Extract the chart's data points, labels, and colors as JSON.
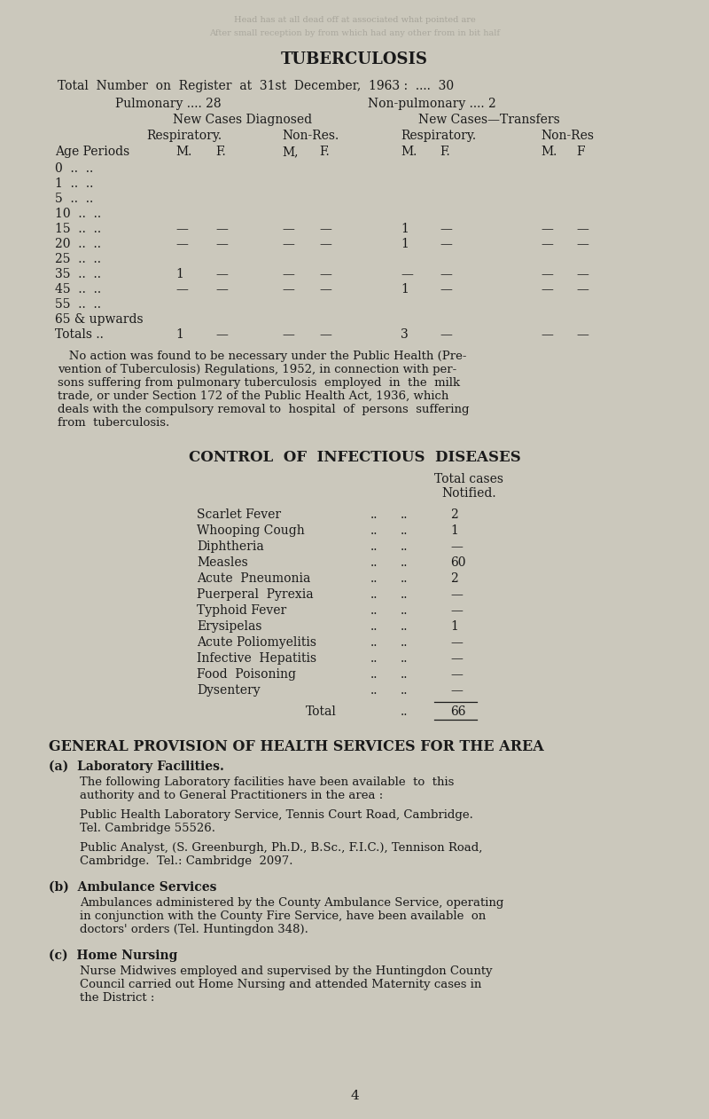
{
  "bg_color": "#cbc8bc",
  "text_color": "#1a1a1a",
  "title": "TUBERCULOSIS",
  "age_rows": [
    {
      "age": "0  ..  ..",
      "c1": "",
      "c2": "",
      "c3": "",
      "c4": "",
      "c5": "",
      "c6": "",
      "c7": "",
      "c8": ""
    },
    {
      "age": "1  ..  ..",
      "c1": "",
      "c2": "",
      "c3": "",
      "c4": "",
      "c5": "",
      "c6": "",
      "c7": "",
      "c8": ""
    },
    {
      "age": "5  ..  ..",
      "c1": "",
      "c2": "",
      "c3": "",
      "c4": "",
      "c5": "",
      "c6": "",
      "c7": "",
      "c8": ""
    },
    {
      "age": "10  ..  ..",
      "c1": "",
      "c2": "",
      "c3": "",
      "c4": "",
      "c5": "",
      "c6": "",
      "c7": "",
      "c8": ""
    },
    {
      "age": "15  ..  ..",
      "c1": "—",
      "c2": "—",
      "c3": "—",
      "c4": "—",
      "c5": "1",
      "c6": "—",
      "c7": "—",
      "c8": "—"
    },
    {
      "age": "20  ..  ..",
      "c1": "—",
      "c2": "—",
      "c3": "—",
      "c4": "—",
      "c5": "1",
      "c6": "—",
      "c7": "—",
      "c8": "—"
    },
    {
      "age": "25  ..  ..",
      "c1": "",
      "c2": "",
      "c3": "",
      "c4": "",
      "c5": "",
      "c6": "",
      "c7": "",
      "c8": ""
    },
    {
      "age": "35  ..  ..",
      "c1": "1",
      "c2": "—",
      "c3": "—",
      "c4": "—",
      "c5": "—",
      "c6": "—",
      "c7": "—",
      "c8": "—"
    },
    {
      "age": "45  ..  ..",
      "c1": "—",
      "c2": "—",
      "c3": "—",
      "c4": "—",
      "c5": "1",
      "c6": "—",
      "c7": "—",
      "c8": "—"
    },
    {
      "age": "55  ..  ..",
      "c1": "",
      "c2": "",
      "c3": "",
      "c4": "",
      "c5": "",
      "c6": "",
      "c7": "",
      "c8": ""
    },
    {
      "age": "65 & upwards",
      "c1": "",
      "c2": "",
      "c3": "",
      "c4": "",
      "c5": "",
      "c6": "",
      "c7": "",
      "c8": ""
    },
    {
      "age": "Totals ..",
      "c1": "1",
      "c2": "—",
      "c3": "—",
      "c4": "—",
      "c5": "3",
      "c6": "—",
      "c7": "—",
      "c8": "—"
    }
  ],
  "diseases": [
    {
      "name": "Scarlet Fever",
      "value": "2"
    },
    {
      "name": "Whooping Cough",
      "value": "1"
    },
    {
      "name": "Diphtheria",
      "value": "—"
    },
    {
      "name": "Measles",
      "value": "60"
    },
    {
      "name": "Acute  Pneumonia",
      "value": "2"
    },
    {
      "name": "Puerperal  Pyrexia",
      "value": "—"
    },
    {
      "name": "Typhoid Fever",
      "value": "—"
    },
    {
      "name": "Erysipelas",
      "value": "1"
    },
    {
      "name": "Acute Poliomyelitis",
      "value": "—"
    },
    {
      "name": "Infective  Hepatitis",
      "value": "—"
    },
    {
      "name": "Food  Poisoning",
      "value": "—"
    },
    {
      "name": "Dysentery",
      "value": "—"
    }
  ],
  "para1_lines": [
    "   No action was found to be necessary under the Public Health (Pre-",
    "vention of Tuberculosis) Regulations, 1952, in connection with per-",
    "sons suffering from pulmonary tuberculosis  employed  in  the  milk",
    "trade, or under Section 172 of the Public Health Act, 1936, which",
    "deals with the compulsory removal to  hospital  of  persons  suffering",
    "from  tuberculosis."
  ],
  "sec3a_lines": [
    "The following Laboratory facilities have been available  to  this",
    "authority and to General Practitioners in the area :"
  ],
  "sec3a2_lines": [
    "Public Health Laboratory Service, Tennis Court Road, Cambridge.",
    "Tel. Cambridge 55526."
  ],
  "sec3a3_lines": [
    "Public Analyst, (S. Greenburgh, Ph.D., B.Sc., F.I.C.), Tennison Road,",
    "Cambridge.  Tel.: Cambridge  2097."
  ],
  "sec3b_lines": [
    "Ambulances administered by the County Ambulance Service, operating",
    "in conjunction with the County Fire Service, have been available  on",
    "doctors' orders (Tel. Huntingdon 348)."
  ],
  "sec3c_lines": [
    "Nurse Midwives employed and supervised by the Huntingdon County",
    "Council carried out Home Nursing and attended Maternity cases in",
    "the District :"
  ]
}
